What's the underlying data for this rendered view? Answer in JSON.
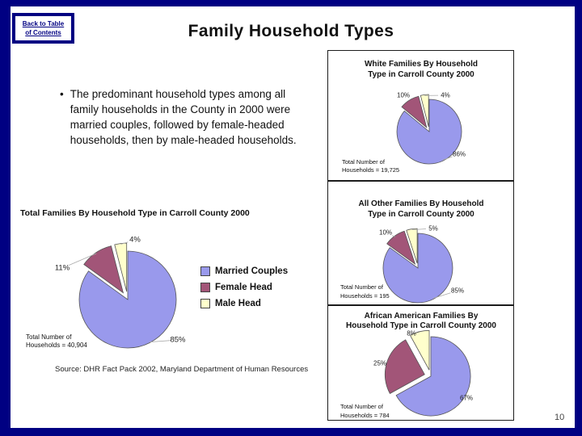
{
  "slide": {
    "back_link": {
      "lines": [
        "Back to Table",
        "of Contents"
      ]
    },
    "title": "Family Household Types",
    "bullet_text": "The predominant household types among all family households in the County in 2000 were married couples, followed by female-headed households, then by male-headed households.",
    "source": "Source: DHR Fact Pack 2002, Maryland Department of Human Resources",
    "page_number": "10"
  },
  "colors": {
    "frame": "#000082",
    "link": "#000082",
    "slices": [
      "#9999EC",
      "#A25578",
      "#FFFFCC"
    ],
    "slice_outline": "#555555",
    "leader_line": "#aaaaaa"
  },
  "legend": {
    "position": "right-of-main-pie",
    "items": [
      {
        "label": "Married Couples",
        "color": "#9999EC"
      },
      {
        "label": "Female Head",
        "color": "#A25578"
      },
      {
        "label": "Male Head",
        "color": "#FFFFCC"
      }
    ]
  },
  "chart_data": [
    {
      "type": "pie",
      "title": "Total Families By Household Type in Carroll County 2000",
      "title_lines": [
        "Total Families By Household Type in Carroll County 2000"
      ],
      "categories": [
        "Married Couples",
        "Female Head",
        "Male Head"
      ],
      "values": [
        85,
        11,
        4
      ],
      "value_labels": [
        "85%",
        "11%",
        "4%"
      ],
      "note_lines": [
        "Total Number of",
        "Households = 40,904"
      ],
      "legend": true
    },
    {
      "type": "pie",
      "title": "White Families By Household Type in Carroll County 2000",
      "title_lines": [
        "White Families By Household",
        "Type in Carroll County 2000"
      ],
      "categories": [
        "Married Couples",
        "Female Head",
        "Male Head"
      ],
      "values": [
        86,
        10,
        4
      ],
      "value_labels": [
        "86%",
        "10%",
        "4%"
      ],
      "note_lines": [
        "Total Number of",
        "Households = 19,725"
      ],
      "legend": false
    },
    {
      "type": "pie",
      "title": "All Other Families By Household Type in Carroll County 2000",
      "title_lines": [
        "All Other Families By Household",
        "Type in Carroll County 2000"
      ],
      "categories": [
        "Married Couples",
        "Female Head",
        "Male Head"
      ],
      "values": [
        85,
        10,
        5
      ],
      "value_labels": [
        "85%",
        "10%",
        "5%"
      ],
      "note_lines": [
        "Total Number of",
        "Households = 195"
      ],
      "legend": false
    },
    {
      "type": "pie",
      "title": "African American Families By Household Type in Carroll County 2000",
      "title_lines": [
        "African American Families By",
        "Household Type in Carroll County 2000"
      ],
      "categories": [
        "Married Couples",
        "Female Head",
        "Male Head"
      ],
      "values": [
        67,
        25,
        8
      ],
      "value_labels": [
        "67%",
        "25%",
        "8%"
      ],
      "note_lines": [
        "Total Number of",
        "Households = 784"
      ],
      "legend": false
    }
  ]
}
